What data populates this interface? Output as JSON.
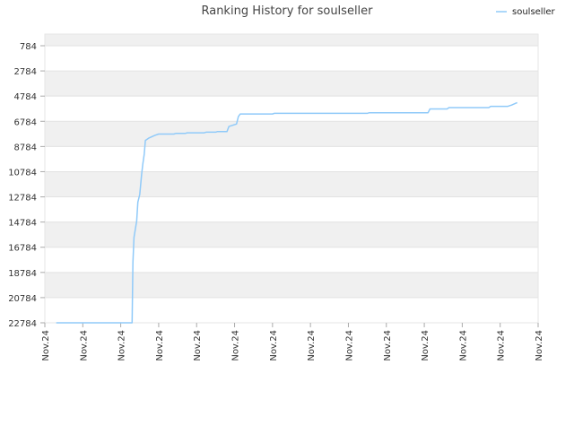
{
  "chart_data": {
    "type": "line",
    "title": "Ranking History for soulseller",
    "xlabel": "",
    "ylabel": "",
    "y_inverted": true,
    "ylim": [
      784,
      22784
    ],
    "y_ticks": [
      "784",
      "2784",
      "4784",
      "6784",
      "8784",
      "10784",
      "12784",
      "14784",
      "16784",
      "18784",
      "20784",
      "22784"
    ],
    "x_ticks": [
      "Nov.24",
      "Nov.24",
      "Nov.24",
      "Nov.24",
      "Nov.24",
      "Nov.24",
      "Nov.24",
      "Nov.24",
      "Nov.24",
      "Nov.24",
      "Nov.24",
      "Nov.24",
      "Nov.24",
      "Nov.24"
    ],
    "xlim": [
      0,
      13
    ],
    "grid": true,
    "legend_position": "top-right",
    "series": [
      {
        "name": "soulseller",
        "color": "#90caf9",
        "points": [
          [
            0.3,
            22784
          ],
          [
            2.3,
            22784
          ],
          [
            2.32,
            18000
          ],
          [
            2.35,
            16000
          ],
          [
            2.42,
            14700
          ],
          [
            2.45,
            13200
          ],
          [
            2.5,
            12600
          ],
          [
            2.55,
            11000
          ],
          [
            2.58,
            10200
          ],
          [
            2.62,
            9400
          ],
          [
            2.65,
            8300
          ],
          [
            2.75,
            8100
          ],
          [
            2.9,
            7900
          ],
          [
            3.0,
            7800
          ],
          [
            3.1,
            7800
          ],
          [
            3.4,
            7800
          ],
          [
            3.45,
            7750
          ],
          [
            3.7,
            7750
          ],
          [
            3.75,
            7700
          ],
          [
            4.2,
            7700
          ],
          [
            4.25,
            7650
          ],
          [
            4.5,
            7650
          ],
          [
            4.55,
            7600
          ],
          [
            4.8,
            7600
          ],
          [
            4.85,
            7200
          ],
          [
            4.95,
            7100
          ],
          [
            5.05,
            7000
          ],
          [
            5.1,
            6400
          ],
          [
            5.15,
            6200
          ],
          [
            5.3,
            6200
          ],
          [
            6.0,
            6200
          ],
          [
            6.05,
            6150
          ],
          [
            7.0,
            6150
          ],
          [
            8.5,
            6150
          ],
          [
            8.55,
            6100
          ],
          [
            10.1,
            6100
          ],
          [
            10.15,
            5800
          ],
          [
            10.6,
            5800
          ],
          [
            10.65,
            5700
          ],
          [
            11.7,
            5700
          ],
          [
            11.75,
            5600
          ],
          [
            12.2,
            5600
          ],
          [
            12.3,
            5500
          ],
          [
            12.45,
            5300
          ]
        ]
      }
    ]
  }
}
